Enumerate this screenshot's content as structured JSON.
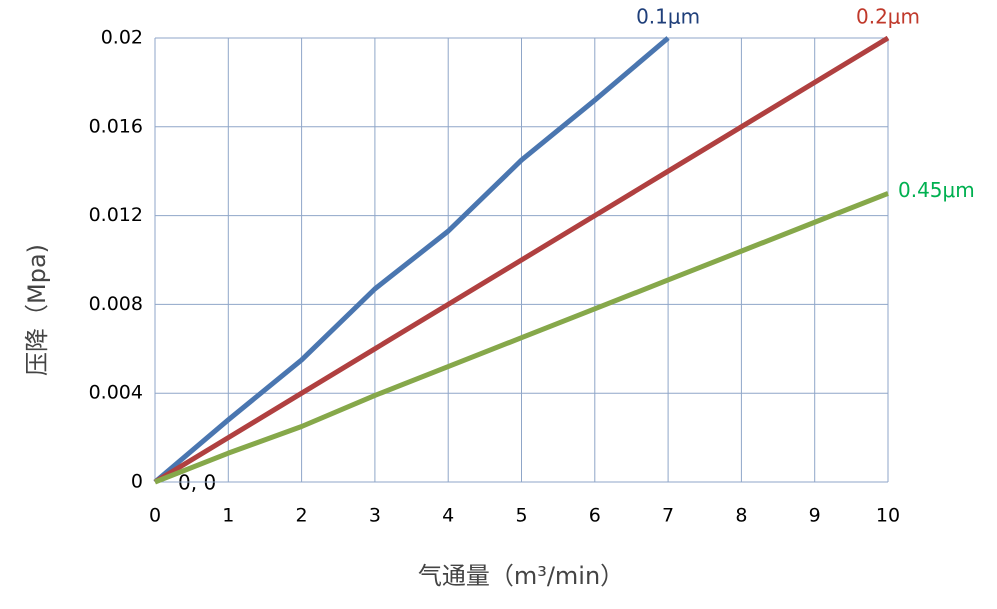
{
  "chart_data": {
    "type": "line",
    "y_label": "压降（Mpa)",
    "x_label": "气通量（m³/min）",
    "annotation": "0, 0",
    "xlim": [
      0,
      10
    ],
    "xticks": [
      0,
      1,
      2,
      3,
      4,
      5,
      6,
      7,
      8,
      9,
      10
    ],
    "ylim": [
      0,
      0.02
    ],
    "yticks": [
      0,
      0.004,
      0.008,
      0.012,
      0.016,
      0.02
    ],
    "grid": true,
    "series": [
      {
        "name": "0.1μm",
        "color": "#4a76b0",
        "label_color": "#1f3f7a",
        "x": [
          0,
          1,
          2,
          3,
          4,
          5,
          6,
          7
        ],
        "values": [
          0,
          0.0028,
          0.0055,
          0.0087,
          0.0113,
          0.0145,
          0.0172,
          0.02
        ]
      },
      {
        "name": "0.2μm",
        "color": "#b04040",
        "label_color": "#c0392b",
        "x": [
          0,
          1,
          2,
          3,
          4,
          5,
          6,
          7,
          8,
          9,
          10
        ],
        "values": [
          0,
          0.002,
          0.004,
          0.006,
          0.008,
          0.01,
          0.012,
          0.014,
          0.016,
          0.018,
          0.02
        ]
      },
      {
        "name": "0.45μm",
        "color": "#86a84a",
        "label_color": "#00b050",
        "x": [
          0,
          1,
          2,
          3,
          4,
          5,
          6,
          7,
          8,
          9,
          10
        ],
        "values": [
          0,
          0.0013,
          0.0025,
          0.0039,
          0.0052,
          0.0065,
          0.0078,
          0.0091,
          0.0104,
          0.0117,
          0.013
        ]
      }
    ]
  }
}
